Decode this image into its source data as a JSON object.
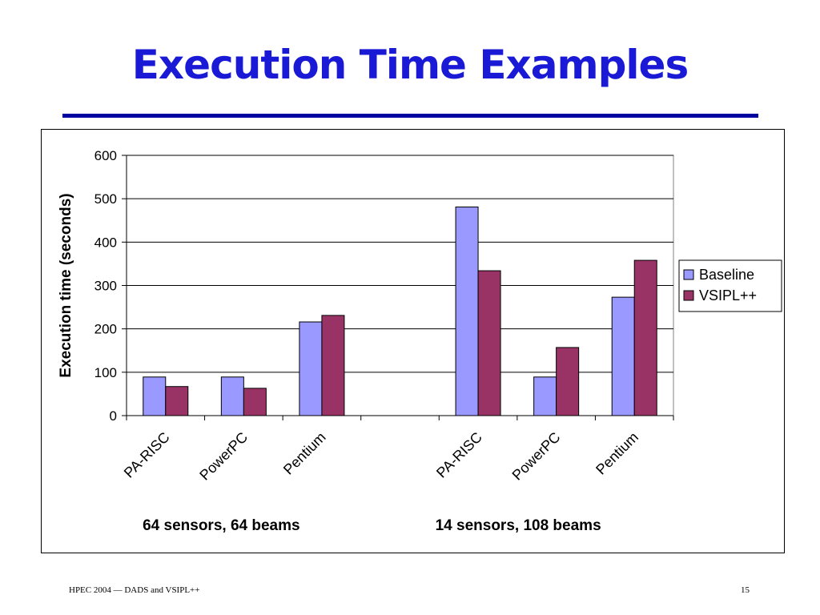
{
  "slide": {
    "title": "Execution Time Examples",
    "footer_left": "HPEC 2004 — DADS and VSIPL++",
    "page_number": "15"
  },
  "colors": {
    "title": "#1a1ad6",
    "rule": "#0000a0",
    "baseline": "#9999ff",
    "vsipl": "#993366"
  },
  "chart_data": {
    "type": "bar",
    "ylabel": "Execution time (seconds)",
    "ylim": [
      0,
      600
    ],
    "yticks": [
      0,
      100,
      200,
      300,
      400,
      500,
      600
    ],
    "grid": true,
    "legend_position": "right",
    "categories": [
      "PA-RISC",
      "PowerPC",
      "Pentium",
      "",
      "PA-RISC",
      "PowerPC",
      "Pentium"
    ],
    "groups": [
      {
        "label": "64 sensors, 64 beams"
      },
      {
        "label": "14 sensors, 108 beams"
      }
    ],
    "series": [
      {
        "name": "Baseline",
        "color": "#9999ff",
        "values": [
          89,
          89,
          216,
          null,
          481,
          89,
          273
        ]
      },
      {
        "name": "VSIPL++",
        "color": "#993366",
        "values": [
          67,
          63,
          231,
          null,
          334,
          157,
          358
        ]
      }
    ]
  }
}
